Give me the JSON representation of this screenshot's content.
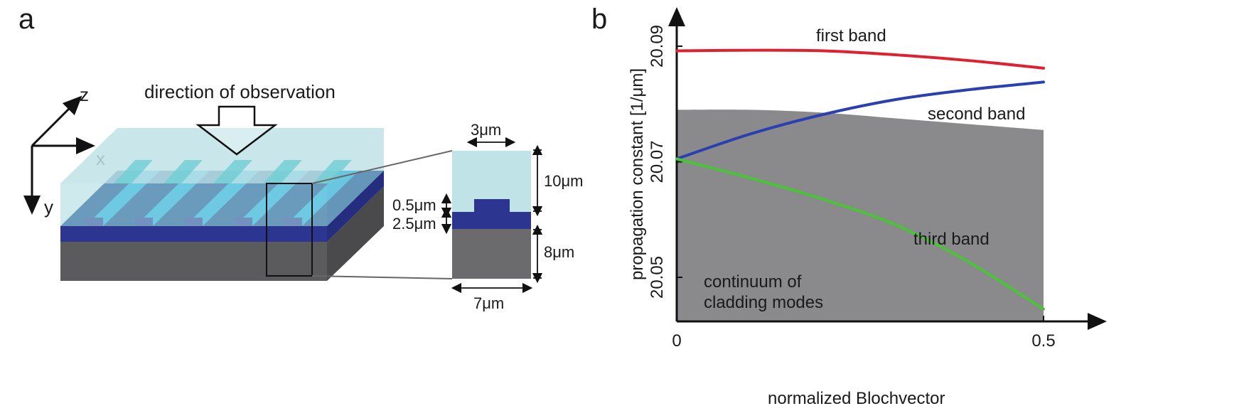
{
  "panel_a": {
    "letter": "a",
    "axes": {
      "z": "z",
      "x": "x",
      "y": "y"
    },
    "observation_label": "direction of observation",
    "dims": {
      "width_top": "3μm",
      "height_cladding": "10μm",
      "rib_height": "0.5μm",
      "core_height": "2.5μm",
      "substrate_height": "8μm",
      "width_bottom": "7μm"
    }
  },
  "panel_b": {
    "letter": "b"
  },
  "chart_data": {
    "type": "line",
    "xlabel": "normalized Blochvector",
    "ylabel": "propagation constant [1/μm]",
    "xlim": [
      0,
      0.5
    ],
    "ylim": [
      20.04,
      20.09
    ],
    "xticks": [
      "0",
      "0.5"
    ],
    "yticks": [
      "20.05",
      "20.07",
      "20.09"
    ],
    "annotations": {
      "continuum": "continuum of cladding modes",
      "continuum_line1": "continuum of",
      "continuum_line2": "cladding modes"
    },
    "continuum_upper": {
      "x": [
        0,
        0.1,
        0.2,
        0.3,
        0.4,
        0.5
      ],
      "y": [
        20.079,
        20.079,
        20.0785,
        20.0775,
        20.0765,
        20.0755
      ]
    },
    "series": [
      {
        "name": "first band",
        "color": "#e0202f",
        "x": [
          0,
          0.1,
          0.2,
          0.3,
          0.4,
          0.5
        ],
        "y": [
          20.0892,
          20.0893,
          20.0892,
          20.0885,
          20.0875,
          20.0862
        ]
      },
      {
        "name": "second band",
        "color": "#2a3fb0",
        "x": [
          0,
          0.1,
          0.2,
          0.3,
          0.4,
          0.5
        ],
        "y": [
          20.0705,
          20.0748,
          20.0782,
          20.0808,
          20.0825,
          20.0838
        ]
      },
      {
        "name": "third band",
        "color": "#4cc23a",
        "x": [
          0,
          0.1,
          0.2,
          0.3,
          0.4,
          0.5
        ],
        "y": [
          20.0705,
          20.0672,
          20.0635,
          20.059,
          20.0525,
          20.0445
        ]
      }
    ]
  }
}
